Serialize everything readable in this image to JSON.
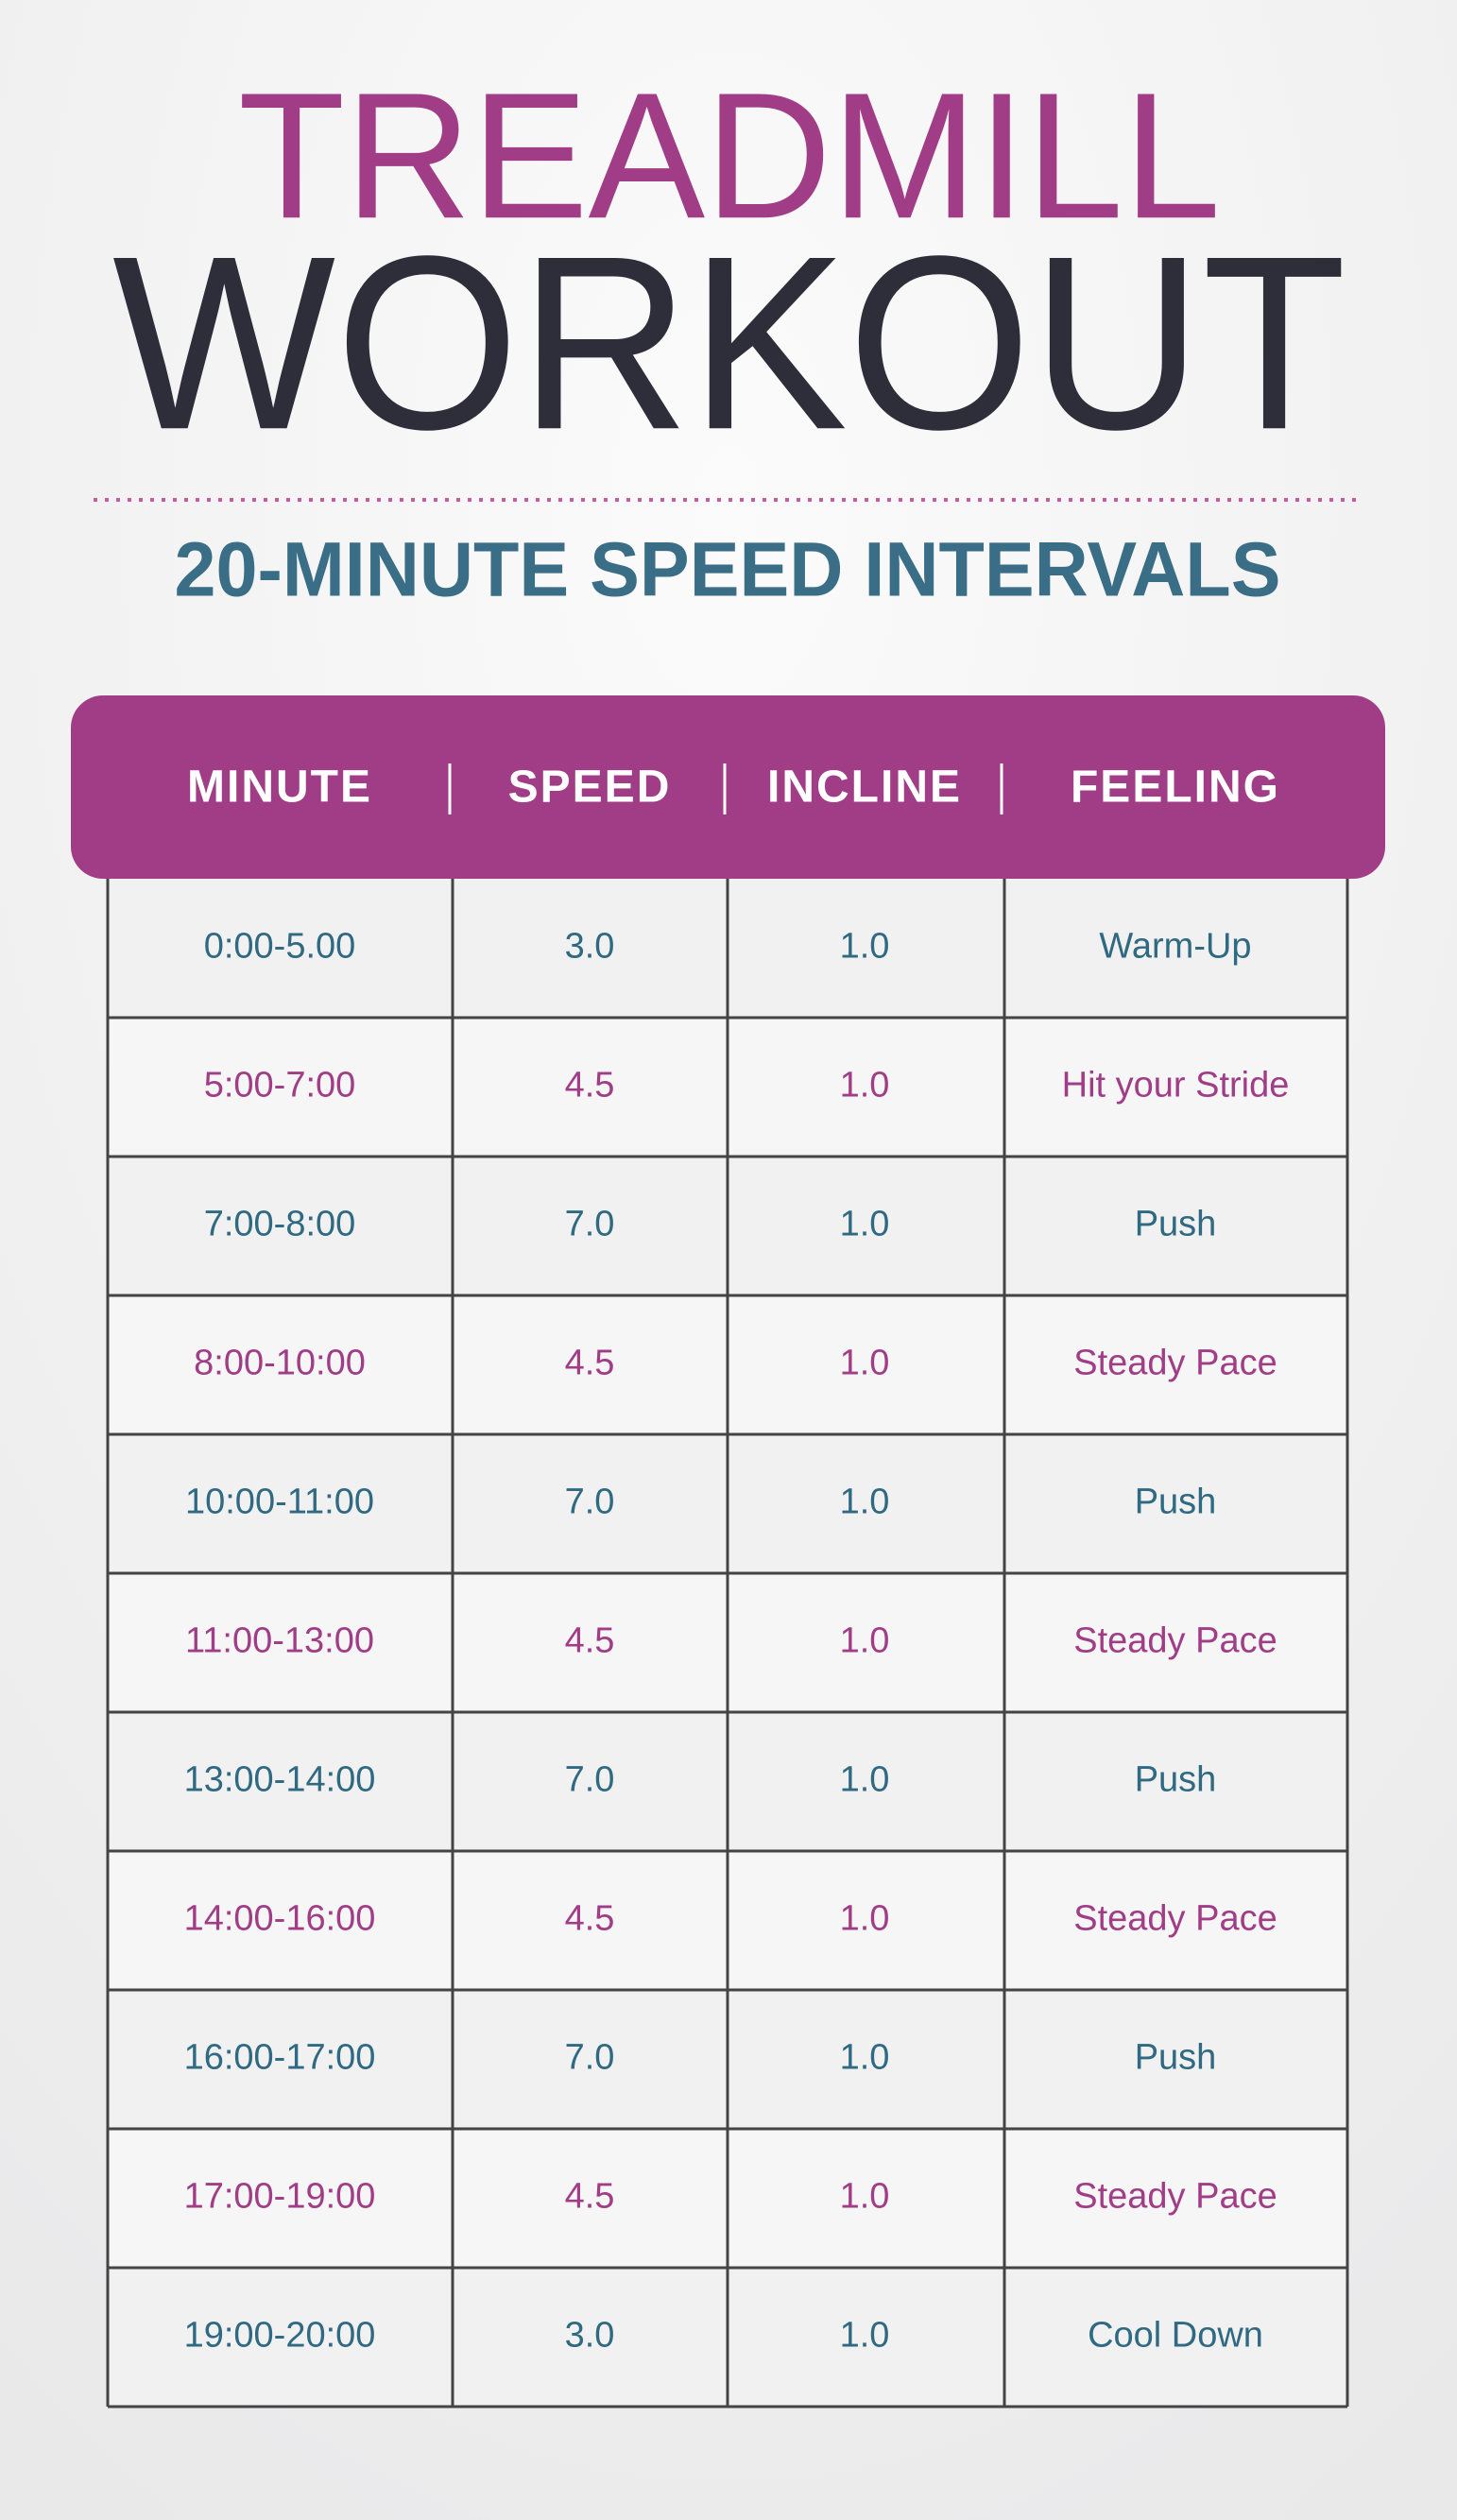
{
  "header": {
    "title_line1": "TREADMILL",
    "title_line2": "WORKOUT",
    "subtitle": "20-MINUTE SPEED INTERVALS"
  },
  "table": {
    "columns": [
      "MINUTE",
      "SPEED",
      "INCLINE",
      "FEELING"
    ],
    "rows": [
      [
        "0:00-5.00",
        "3.0",
        "1.0",
        "Warm-Up"
      ],
      [
        "5:00-7:00",
        "4.5",
        "1.0",
        "Hit your Stride"
      ],
      [
        "7:00-8:00",
        "7.0",
        "1.0",
        "Push"
      ],
      [
        "8:00-10:00",
        "4.5",
        "1.0",
        "Steady Pace"
      ],
      [
        "10:00-11:00",
        "7.0",
        "1.0",
        "Push"
      ],
      [
        "11:00-13:00",
        "4.5",
        "1.0",
        "Steady Pace"
      ],
      [
        "13:00-14:00",
        "7.0",
        "1.0",
        "Push"
      ],
      [
        "14:00-16:00",
        "4.5",
        "1.0",
        "Steady Pace"
      ],
      [
        "16:00-17:00",
        "7.0",
        "1.0",
        "Push"
      ],
      [
        "17:00-19:00",
        "4.5",
        "1.0",
        "Steady Pace"
      ],
      [
        "19:00-20:00",
        "3.0",
        "1.0",
        "Cool Down"
      ]
    ]
  }
}
